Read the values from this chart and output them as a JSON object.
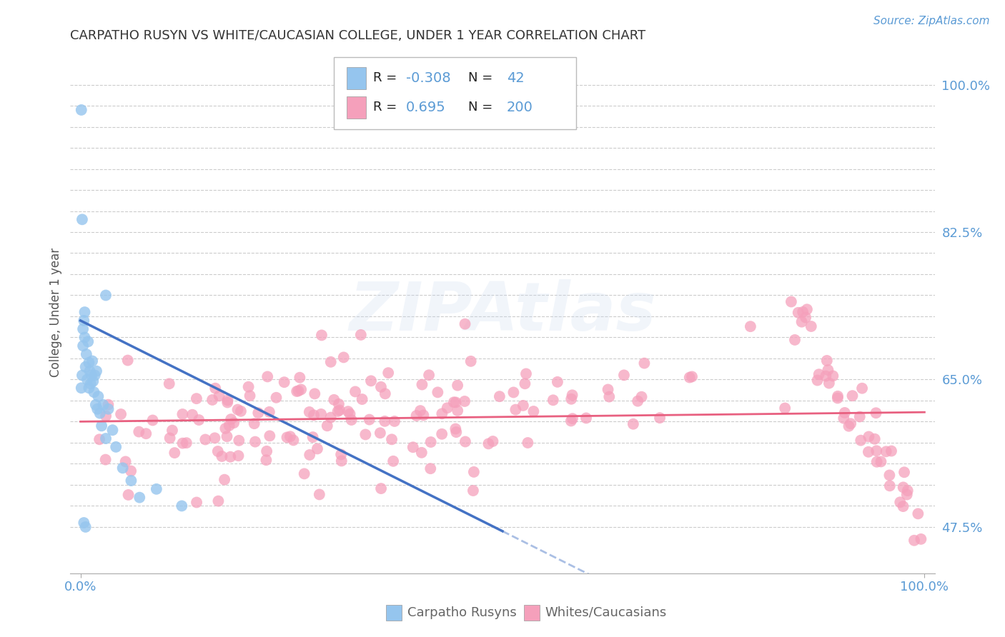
{
  "title": "CARPATHO RUSYN VS WHITE/CAUCASIAN COLLEGE, UNDER 1 YEAR CORRELATION CHART",
  "source": "Source: ZipAtlas.com",
  "ylabel": "College, Under 1 year",
  "xlabel": "",
  "xlim": [
    0.0,
    1.0
  ],
  "ylim": [
    0.42,
    1.04
  ],
  "ytick_labels_right": [
    "47.5%",
    "65.0%",
    "82.5%",
    "100.0%"
  ],
  "ytick_positions_right": [
    0.475,
    0.65,
    0.825,
    1.0
  ],
  "xtick_labels": [
    "0.0%",
    "100.0%"
  ],
  "xtick_positions": [
    0.0,
    1.0
  ],
  "blue_scatter_color": "#95C5EE",
  "pink_scatter_color": "#F5A0BB",
  "blue_line_color": "#4472C4",
  "pink_line_color": "#E86080",
  "R_blue": -0.308,
  "N_blue": 42,
  "R_pink": 0.695,
  "N_pink": 200,
  "legend_label_blue": "Carpatho Rusyns",
  "legend_label_pink": "Whites/Caucasians",
  "watermark": "ZIPAtlas",
  "background_color": "#FFFFFF",
  "grid_color": "#CCCCCC",
  "title_color": "#333333",
  "axis_label_color": "#5B9BD5",
  "text_color": "#666666"
}
